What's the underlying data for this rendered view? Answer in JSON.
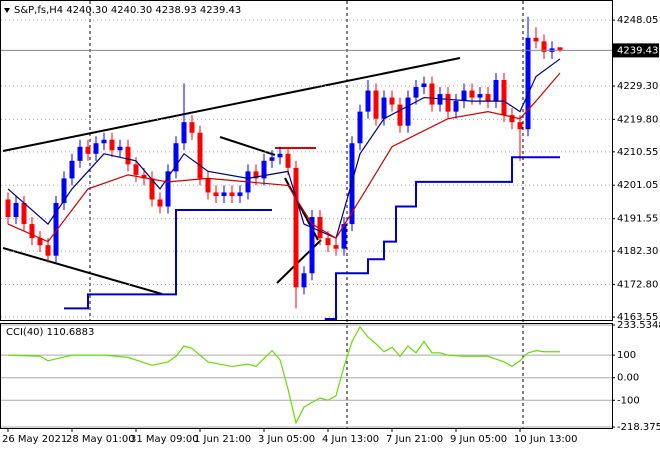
{
  "chart_data": [
    {
      "type": "candlestick",
      "title": "S&P,fs,H4  4240.30 4240.30 4238.93 4239.43",
      "up_color": "#0000ff",
      "down_color": "#ff0000",
      "open": [
        4197,
        4192,
        4196,
        4190,
        4186,
        4184,
        4181,
        4196,
        4203,
        4208,
        4212,
        4210,
        4213,
        4214,
        4211,
        4212,
        4207,
        4204,
        4203,
        4197,
        4195,
        4205,
        4213,
        4219,
        4216,
        4203,
        4199,
        4198,
        4199,
        4198,
        4199,
        4205,
        4203,
        4208,
        4209,
        4210,
        4206,
        4172,
        4176,
        4192,
        4186,
        4184,
        4183,
        4190,
        4213,
        4222,
        4228,
        4220,
        4226,
        4224,
        4218,
        4226,
        4229,
        4230,
        4224,
        4227,
        4222,
        4225,
        4228,
        4226,
        4227,
        4225,
        4231,
        4221,
        4219,
        4217,
        4243,
        4242,
        4239,
        4240.3
      ],
      "high": [
        4199,
        4198,
        4198,
        4192,
        4188,
        4186,
        4198,
        4205,
        4210,
        4214,
        4214,
        4215,
        4216,
        4216,
        4214,
        4214,
        4209,
        4206,
        4205,
        4199,
        4207,
        4215,
        4230,
        4221,
        4218,
        4205,
        4201,
        4201,
        4201,
        4201,
        4207,
        4207,
        4210,
        4211,
        4212,
        4212,
        4208,
        4178,
        4194,
        4194,
        4188,
        4186,
        4192,
        4215,
        4224,
        4231,
        4230,
        4228,
        4228,
        4226,
        4228,
        4231,
        4232,
        4232,
        4229,
        4229,
        4227,
        4230,
        4230,
        4229,
        4229,
        4233,
        4233,
        4223,
        4221,
        4249,
        4246,
        4244,
        4242,
        4240.3
      ],
      "low": [
        4190,
        4190,
        4188,
        4184,
        4182,
        4179,
        4179,
        4194,
        4201,
        4206,
        4208,
        4208,
        4211,
        4209,
        4209,
        4205,
        4202,
        4201,
        4195,
        4193,
        4193,
        4203,
        4211,
        4214,
        4201,
        4197,
        4196,
        4196,
        4196,
        4196,
        4197,
        4201,
        4201,
        4206,
        4207,
        4204,
        4166,
        4170,
        4174,
        4184,
        4182,
        4181,
        4181,
        4188,
        4211,
        4220,
        4218,
        4218,
        4222,
        4216,
        4216,
        4224,
        4227,
        4222,
        4222,
        4220,
        4220,
        4223,
        4224,
        4224,
        4223,
        4223,
        4219,
        4217,
        4208,
        4215,
        4240,
        4237,
        4237,
        4238.93
      ],
      "close": [
        4192,
        4196,
        4190,
        4186,
        4184,
        4181,
        4196,
        4203,
        4208,
        4212,
        4210,
        4213,
        4214,
        4211,
        4212,
        4207,
        4204,
        4203,
        4197,
        4195,
        4205,
        4213,
        4219,
        4216,
        4203,
        4199,
        4198,
        4199,
        4198,
        4199,
        4205,
        4203,
        4208,
        4209,
        4210,
        4206,
        4172,
        4176,
        4192,
        4186,
        4184,
        4183,
        4190,
        4213,
        4222,
        4228,
        4220,
        4226,
        4224,
        4218,
        4226,
        4229,
        4230,
        4224,
        4227,
        4222,
        4225,
        4228,
        4226,
        4227,
        4225,
        4231,
        4221,
        4219,
        4217,
        4243,
        4242,
        4239,
        4240,
        4239.43
      ],
      "lines": [
        {
          "color": "#000080",
          "x": [
            0,
            5,
            8,
            12,
            16,
            19,
            22,
            25,
            30,
            35,
            37,
            41,
            44,
            47,
            52,
            58,
            62,
            64,
            66,
            69
          ],
          "values": [
            4200,
            4190,
            4200,
            4210,
            4208,
            4200,
            4210,
            4205,
            4203,
            4205,
            4190,
            4186,
            4210,
            4220,
            4226,
            4225,
            4225,
            4222,
            4232,
            4237
          ]
        },
        {
          "color": "#cc0000",
          "x": [
            0,
            5,
            10,
            15,
            20,
            25,
            30,
            35,
            38,
            41,
            44,
            48,
            55,
            60,
            64,
            66,
            69
          ],
          "values": [
            4190,
            4185,
            4200,
            4204,
            4202,
            4203,
            4202,
            4201,
            4190,
            4186,
            4197,
            4212,
            4220,
            4222,
            4220,
            4225,
            4233
          ]
        },
        {
          "color": "#0000cc",
          "step": true,
          "x": [
            7,
            10,
            21,
            33,
            36,
            39.6,
            41,
            45,
            47,
            48.5,
            51,
            63,
            69
          ],
          "values": [
            4166,
            4170,
            4194,
            4194,
            null,
            4163,
            4176,
            4180,
            4185,
            4195,
            4202,
            4209,
            4209
          ]
        }
      ],
      "xlim": [
        -1,
        75.5
      ],
      "xticks": [
        {
          "value": 0,
          "label": "26 May 2021"
        },
        {
          "value": 8,
          "label": "28 May 01:00"
        },
        {
          "value": 16,
          "label": "31 May 09:00"
        },
        {
          "value": 24,
          "label": "1 Jun 21:00"
        },
        {
          "value": 32,
          "label": "3 Jun 05:00"
        },
        {
          "value": 40,
          "label": "4 Jun 13:00"
        },
        {
          "value": 48,
          "label": "7 Jun 21:00"
        },
        {
          "value": 56,
          "label": "9 Jun 05:00"
        },
        {
          "value": 64,
          "label": "10 Jun 13:00"
        }
      ],
      "ylim": [
        4162.7,
        4253.2
      ],
      "yticks": [
        {
          "value": 4163.55,
          "label": "4163.55"
        },
        {
          "value": 4172.8,
          "label": "4172.80"
        },
        {
          "value": 4182.3,
          "label": "4182.30"
        },
        {
          "value": 4191.55,
          "label": "4191.55"
        },
        {
          "value": 4201.05,
          "label": "4201.05"
        },
        {
          "value": 4210.55,
          "label": "4210.55"
        },
        {
          "value": 4219.8,
          "label": "4219.80"
        },
        {
          "value": 4229.3,
          "label": "4229.30"
        },
        {
          "value": 4248.05,
          "label": "4248.05"
        }
      ],
      "grid": true
    },
    {
      "type": "line",
      "title": "CCI(40) 110.6883",
      "series": [
        {
          "color": "#66dd00",
          "x": [
            0,
            4,
            5,
            8,
            12,
            15,
            18,
            20,
            21,
            22,
            23,
            25,
            28,
            30,
            31,
            33,
            34,
            35,
            36,
            37,
            38,
            39,
            40,
            41,
            42,
            43,
            44,
            45,
            46,
            47,
            48,
            49,
            50,
            51,
            52,
            53,
            54,
            55,
            57,
            60,
            62,
            63,
            64,
            65,
            66,
            67,
            69
          ],
          "values": [
            100,
            95,
            75,
            100,
            100,
            90,
            55,
            70,
            95,
            140,
            130,
            70,
            50,
            60,
            50,
            120,
            80,
            -50,
            -200,
            -130,
            -110,
            -90,
            -100,
            -80,
            50,
            160,
            225,
            180,
            150,
            115,
            135,
            95,
            140,
            110,
            160,
            110,
            110,
            100,
            95,
            95,
            70,
            50,
            75,
            110,
            120,
            115,
            115
          ]
        }
      ],
      "xlim": [
        -1,
        75.5
      ],
      "ylim": [
        -218.3753,
        233.5348
      ],
      "yticks": [
        233.5348,
        100,
        {
          "value": 0,
          "label": "0.00"
        },
        -100,
        -218.3753
      ]
    }
  ]
}
